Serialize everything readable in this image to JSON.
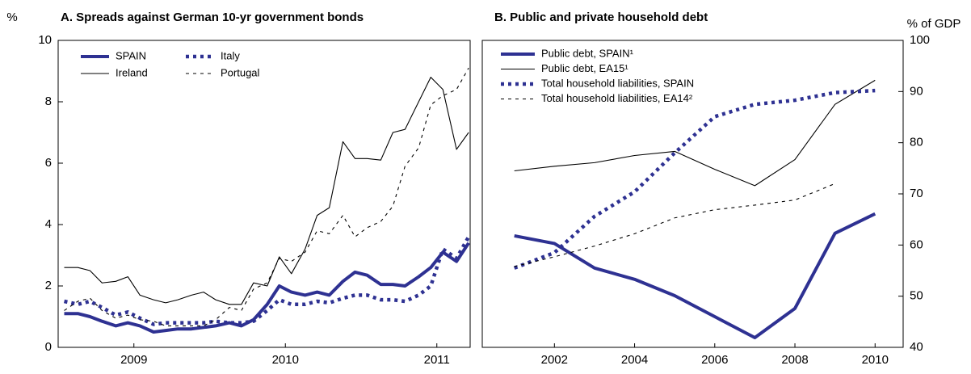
{
  "chart_data": [
    {
      "type": "line",
      "title": "A. Spreads against German 10-yr government bonds",
      "ylabel": "%",
      "x": [
        2009.04,
        2009.13,
        2009.21,
        2009.29,
        2009.38,
        2009.46,
        2009.54,
        2009.63,
        2009.71,
        2009.79,
        2009.88,
        2009.96,
        2010.04,
        2010.13,
        2010.21,
        2010.29,
        2010.38,
        2010.46,
        2010.54,
        2010.63,
        2010.71,
        2010.79,
        2010.88,
        2010.96,
        2011.04,
        2011.13,
        2011.21,
        2011.29,
        2011.38,
        2011.46,
        2011.54,
        2011.63,
        2011.71
      ],
      "xlim": [
        2009,
        2011.72
      ],
      "xticks": [
        {
          "value": 2009.5,
          "label": "2009"
        },
        {
          "value": 2010.5,
          "label": "2010"
        },
        {
          "value": 2011.5,
          "label": "2011"
        }
      ],
      "ylim": [
        0,
        10
      ],
      "yticks": [
        0,
        2,
        4,
        6,
        8,
        10
      ],
      "legend": "upper left",
      "series": [
        {
          "name": "SPAIN",
          "color": "#2e3192",
          "style": "thick",
          "values": [
            1.1,
            1.1,
            1.0,
            0.85,
            0.7,
            0.8,
            0.7,
            0.5,
            0.55,
            0.6,
            0.6,
            0.65,
            0.7,
            0.8,
            0.7,
            0.9,
            1.4,
            2.0,
            1.8,
            1.7,
            1.8,
            1.7,
            2.15,
            2.45,
            2.35,
            2.05,
            2.05,
            2.0,
            2.3,
            2.6,
            3.1,
            2.8,
            3.4
          ]
        },
        {
          "name": "Italy",
          "color": "#2e3192",
          "style": "dotted",
          "values": [
            1.5,
            1.4,
            1.5,
            1.3,
            1.05,
            1.15,
            0.95,
            0.75,
            0.8,
            0.8,
            0.8,
            0.8,
            0.85,
            0.8,
            0.8,
            0.85,
            1.2,
            1.55,
            1.4,
            1.4,
            1.5,
            1.45,
            1.6,
            1.7,
            1.7,
            1.55,
            1.55,
            1.5,
            1.7,
            2.0,
            3.2,
            2.9,
            3.6
          ]
        },
        {
          "name": "Ireland",
          "color": "#000000",
          "style": "thin",
          "values": [
            2.6,
            2.6,
            2.5,
            2.1,
            2.15,
            2.3,
            1.7,
            1.55,
            1.45,
            1.55,
            1.7,
            1.8,
            1.55,
            1.4,
            1.4,
            2.1,
            2.0,
            2.95,
            2.4,
            3.2,
            4.3,
            4.55,
            6.7,
            6.15,
            6.15,
            6.1,
            7.0,
            7.1,
            8.0,
            8.8,
            8.4,
            6.45,
            7.0
          ]
        },
        {
          "name": "Portugal",
          "color": "#000000",
          "style": "dashed",
          "values": [
            1.2,
            1.5,
            1.6,
            1.2,
            0.95,
            1.05,
            0.9,
            0.85,
            0.7,
            0.7,
            0.7,
            0.7,
            0.9,
            1.3,
            1.2,
            1.9,
            2.1,
            2.9,
            2.8,
            3.1,
            3.8,
            3.7,
            4.3,
            3.6,
            3.9,
            4.1,
            4.6,
            5.9,
            6.5,
            7.9,
            8.2,
            8.4,
            9.1
          ]
        }
      ]
    },
    {
      "type": "line",
      "title": "B. Public and private household debt",
      "ylabel": "% of GDP",
      "x": [
        2001,
        2002,
        2003,
        2004,
        2005,
        2006,
        2007,
        2008,
        2009,
        2010
      ],
      "xlim": [
        2000.2,
        2010.7
      ],
      "xticks": [
        2002,
        2004,
        2006,
        2008,
        2010
      ],
      "ylim": [
        40,
        100
      ],
      "yticks": [
        40,
        50,
        60,
        70,
        80,
        90,
        100
      ],
      "legend": "upper left",
      "series": [
        {
          "name": "Public debt, SPAIN¹",
          "color": "#2e3192",
          "style": "thick",
          "values": [
            61.8,
            60.3,
            55.5,
            53.3,
            50.1,
            46.0,
            41.9,
            47.6,
            62.3,
            66.1
          ]
        },
        {
          "name": "Public debt, EA15¹",
          "color": "#000000",
          "style": "thin",
          "values": [
            74.5,
            75.4,
            76.1,
            77.5,
            78.3,
            74.8,
            71.6,
            76.7,
            87.5,
            92.2
          ]
        },
        {
          "name": "Total household liabilities, SPAIN",
          "color": "#2e3192",
          "style": "dotted",
          "values": [
            55.5,
            58.5,
            65.6,
            70.4,
            78.0,
            85.1,
            87.5,
            88.3,
            89.8,
            90.2
          ]
        },
        {
          "name": "Total household liabilities, EA14²",
          "color": "#000000",
          "style": "dashed",
          "values": [
            55.8,
            57.7,
            59.8,
            62.2,
            65.3,
            66.9,
            67.8,
            68.8,
            72.0,
            null
          ]
        }
      ]
    }
  ]
}
